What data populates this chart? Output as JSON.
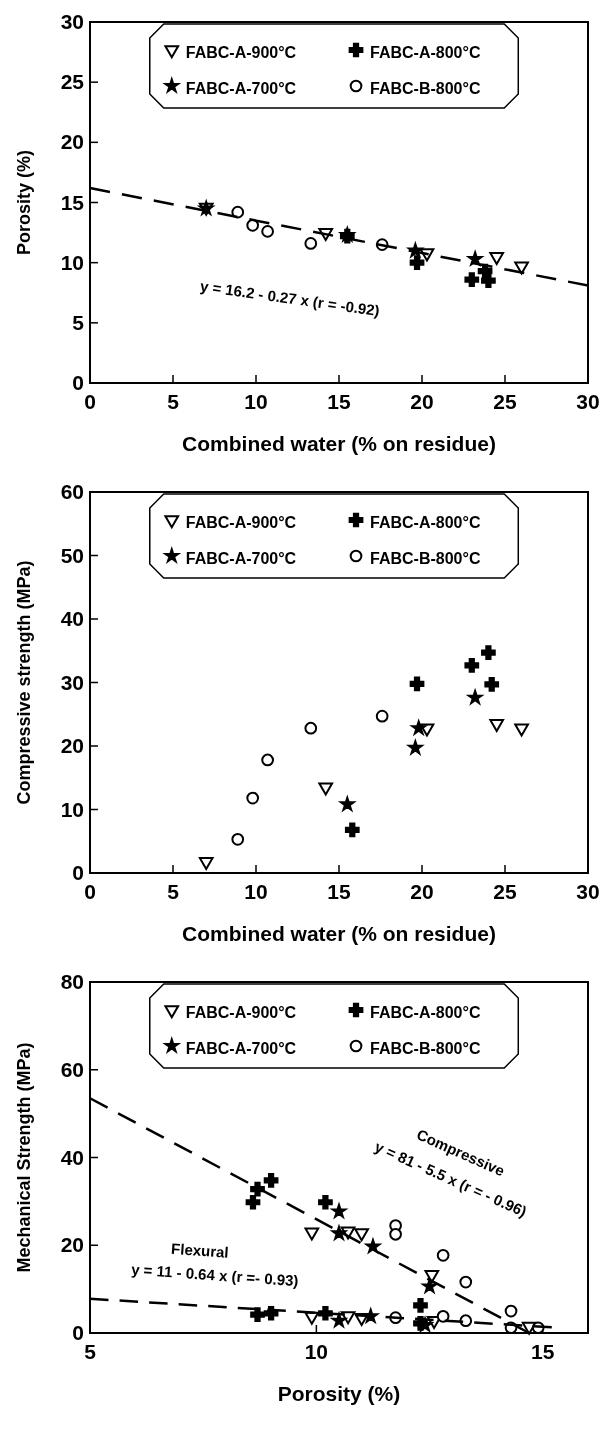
{
  "chart_data": [
    {
      "type": "scatter",
      "xlabel": "Combined water (% on residue)",
      "ylabel": "Porosity (%)",
      "xlim": [
        0,
        30
      ],
      "ylim": [
        0,
        30
      ],
      "xticks": [
        0,
        5,
        10,
        15,
        20,
        25,
        30
      ],
      "yticks": [
        0,
        5,
        10,
        15,
        20,
        25,
        30
      ],
      "legend": "top",
      "annotations": [
        "y = 16.2 - 0.27 x (r = -0.92)"
      ],
      "series": [
        {
          "name": "FABC-A-900°C",
          "type": "scatter",
          "marker": "triangle",
          "color": "#000000",
          "x": [
            7,
            14.2,
            20.3,
            24.5,
            26
          ],
          "values": [
            14.6,
            12.5,
            10.8,
            10.5,
            9.7
          ]
        },
        {
          "name": "FABC-A-800°C",
          "type": "scatter",
          "marker": "cross",
          "color": "#000000",
          "x": [
            15.5,
            19.7,
            23,
            24,
            23.8
          ],
          "values": [
            12.2,
            10,
            8.6,
            8.5,
            9.3
          ]
        },
        {
          "name": "FABC-A-700°C",
          "type": "scatter",
          "marker": "star",
          "color": "#000000",
          "x": [
            7,
            15.5,
            19.6,
            23.2
          ],
          "values": [
            14.5,
            12.3,
            11,
            10.3
          ]
        },
        {
          "name": "FABC-B-800°C",
          "type": "scatter",
          "marker": "circle",
          "color": "#000000",
          "x": [
            8.9,
            9.8,
            10.7,
            13.3,
            17.6
          ],
          "values": [
            14.2,
            13.1,
            12.6,
            11.6,
            11.5
          ]
        },
        {
          "type": "line",
          "marker": "none",
          "line_style": "dashed",
          "color": "#000000",
          "x": [
            0,
            30
          ],
          "values": [
            16.2,
            8.1
          ]
        }
      ]
    },
    {
      "type": "scatter",
      "xlabel": "Combined water (% on residue)",
      "ylabel": "Compressive strength (MPa)",
      "xlim": [
        0,
        30
      ],
      "ylim": [
        0,
        60
      ],
      "xticks": [
        0,
        5,
        10,
        15,
        20,
        25,
        30
      ],
      "yticks": [
        0,
        10,
        20,
        30,
        40,
        50,
        60
      ],
      "legend": "top",
      "series": [
        {
          "name": "FABC-A-900°C",
          "type": "scatter",
          "marker": "triangle",
          "color": "#000000",
          "x": [
            7,
            14.2,
            20.3,
            24.5,
            26
          ],
          "values": [
            1.8,
            13.5,
            22.8,
            23.5,
            22.8
          ]
        },
        {
          "name": "FABC-A-800°C",
          "type": "scatter",
          "marker": "cross",
          "color": "#000000",
          "x": [
            15.8,
            19.7,
            23,
            24,
            24.2
          ],
          "values": [
            6.8,
            29.8,
            32.7,
            34.7,
            29.7
          ]
        },
        {
          "name": "FABC-A-700°C",
          "type": "scatter",
          "marker": "star",
          "color": "#000000",
          "x": [
            15.5,
            19.6,
            19.8,
            23.2
          ],
          "values": [
            10.8,
            19.7,
            22.8,
            27.6
          ]
        },
        {
          "name": "FABC-B-800°C",
          "type": "scatter",
          "marker": "circle",
          "color": "#000000",
          "x": [
            8.9,
            9.8,
            10.7,
            13.3,
            17.6
          ],
          "values": [
            5.3,
            11.8,
            17.8,
            22.8,
            24.7
          ]
        }
      ]
    },
    {
      "type": "scatter",
      "xlabel": "Porosity (%)",
      "ylabel": "Mechanical Strength (MPa)",
      "xlim": [
        5,
        16
      ],
      "ylim": [
        0,
        80
      ],
      "xticks": [
        5,
        10,
        15
      ],
      "yticks": [
        0,
        20,
        40,
        60,
        80
      ],
      "legend": "top",
      "annotations": [
        "Compressive",
        "y = 81 - 5.5 x (r = - 0.96)",
        "Flexural",
        "y = 11 - 0.64 x (r =- 0.93)"
      ],
      "series": [
        {
          "name": "FABC-A-900°C",
          "type": "scatter",
          "marker": "triangle",
          "color": "#000000",
          "x": [
            9.9,
            10.7,
            11,
            12.55
          ],
          "values": [
            23,
            23.2,
            22.8,
            13.3
          ]
        },
        {
          "name": "FABC-A-800°C",
          "type": "scatter",
          "marker": "cross",
          "color": "#000000",
          "x": [
            8.6,
            8.7,
            9,
            10.2,
            12.3
          ],
          "values": [
            29.8,
            32.8,
            34.8,
            29.8,
            6.3
          ]
        },
        {
          "name": "FABC-A-700°C",
          "type": "scatter",
          "marker": "star",
          "color": "#000000",
          "x": [
            10.5,
            10.5,
            11.25,
            12.5
          ],
          "values": [
            27.7,
            22.7,
            19.7,
            10.6
          ]
        },
        {
          "name": "FABC-B-800°C",
          "type": "scatter",
          "marker": "circle",
          "color": "#000000",
          "x": [
            11.75,
            11.75,
            12.8,
            13.3,
            14.3
          ],
          "values": [
            24.5,
            22.5,
            17.7,
            11.6,
            5
          ]
        },
        {
          "type": "scatter",
          "marker": "triangle",
          "color": "#000000",
          "x": [
            9.9,
            10.7,
            11,
            12.6,
            14.7
          ],
          "values": [
            3.8,
            3.9,
            3.5,
            2.8,
            1.5
          ]
        },
        {
          "type": "scatter",
          "marker": "cross",
          "color": "#000000",
          "x": [
            8.7,
            9,
            10.2,
            12.3
          ],
          "values": [
            4.2,
            4.5,
            4.5,
            2.2
          ]
        },
        {
          "type": "scatter",
          "marker": "star",
          "color": "#000000",
          "x": [
            10.5,
            11.2,
            12.4
          ],
          "values": [
            2.8,
            3.8,
            1.8
          ]
        },
        {
          "type": "scatter",
          "marker": "circle",
          "color": "#000000",
          "x": [
            11.75,
            12.8,
            13.3,
            14.3,
            14.9
          ],
          "values": [
            3.5,
            3.8,
            2.8,
            1.2,
            1.2
          ]
        },
        {
          "type": "line",
          "marker": "none",
          "line_style": "dashed",
          "color": "#000000",
          "x": [
            5,
            14.7
          ],
          "values": [
            53.5,
            0
          ]
        },
        {
          "type": "line",
          "marker": "none",
          "line_style": "dashed",
          "color": "#000000",
          "x": [
            5,
            15.2
          ],
          "values": [
            7.8,
            1.3
          ]
        }
      ]
    }
  ]
}
